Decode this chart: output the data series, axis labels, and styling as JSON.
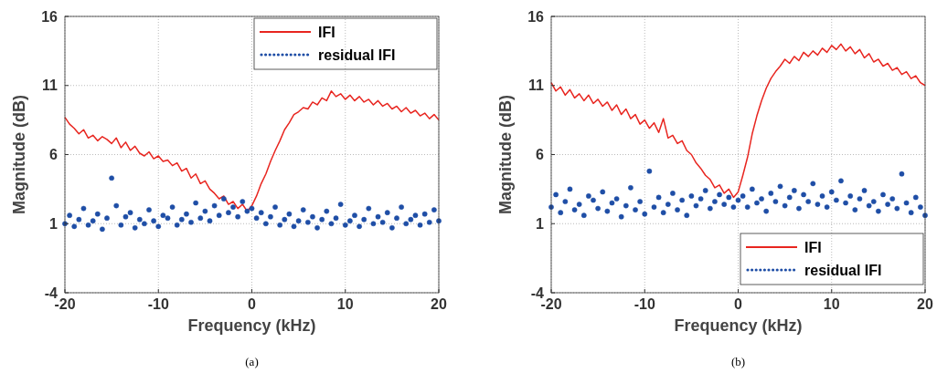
{
  "chart_data": [
    {
      "type": "line",
      "xlabel": "Frequency (kHz)",
      "ylabel": "Magnitude (dB)",
      "xlim": [
        -20,
        20
      ],
      "xticks": [
        -20,
        -10,
        0,
        10,
        20
      ],
      "ylim": [
        -4,
        16
      ],
      "yticks": [
        -4,
        1,
        6,
        11,
        16
      ],
      "grid": true,
      "legend": "top right",
      "annotations": [
        "(a)"
      ],
      "x": [
        -20,
        -19.5,
        -19,
        -18.5,
        -18,
        -17.5,
        -17,
        -16.5,
        -16,
        -15.5,
        -15,
        -14.5,
        -14,
        -13.5,
        -13,
        -12.5,
        -12,
        -11.5,
        -11,
        -10.5,
        -10,
        -9.5,
        -9,
        -8.5,
        -8,
        -7.5,
        -7,
        -6.5,
        -6,
        -5.5,
        -5,
        -4.5,
        -4,
        -3.5,
        -3,
        -2.5,
        -2,
        -1.5,
        -1,
        -0.5,
        0,
        0.5,
        1,
        1.5,
        2,
        2.5,
        3,
        3.5,
        4,
        4.5,
        5,
        5.5,
        6,
        6.5,
        7,
        7.5,
        8,
        8.5,
        9,
        9.5,
        10,
        10.5,
        11,
        11.5,
        12,
        12.5,
        13,
        13.5,
        14,
        14.5,
        15,
        15.5,
        16,
        16.5,
        17,
        17.5,
        18,
        18.5,
        19,
        19.5,
        20
      ],
      "series": [
        {
          "name": "IFI",
          "type": "line",
          "color": "#e8251f",
          "values": [
            8.7,
            8.2,
            7.9,
            7.5,
            7.8,
            7.2,
            7.4,
            7.0,
            7.3,
            7.1,
            6.8,
            7.2,
            6.5,
            6.9,
            6.3,
            6.6,
            6.1,
            5.9,
            6.2,
            5.7,
            5.9,
            5.5,
            5.6,
            5.2,
            5.4,
            4.8,
            5.0,
            4.3,
            4.6,
            3.9,
            4.1,
            3.5,
            3.2,
            2.8,
            3.0,
            2.4,
            2.6,
            2.1,
            2.4,
            1.9,
            2.3,
            3.0,
            3.9,
            4.6,
            5.5,
            6.3,
            7.0,
            7.8,
            8.3,
            8.9,
            9.1,
            9.4,
            9.3,
            9.8,
            9.6,
            10.1,
            9.9,
            10.6,
            10.2,
            10.4,
            10.0,
            10.3,
            9.9,
            10.2,
            9.8,
            10.0,
            9.6,
            9.9,
            9.5,
            9.7,
            9.3,
            9.5,
            9.1,
            9.4,
            9.0,
            9.2,
            8.8,
            9.0,
            8.6,
            8.9,
            8.5
          ]
        },
        {
          "name": "residual IFI",
          "type": "scatter",
          "marker": "circle",
          "color": "#1f4ea6",
          "values": [
            1.0,
            1.6,
            0.8,
            1.3,
            2.1,
            0.9,
            1.2,
            1.7,
            0.6,
            1.4,
            4.3,
            2.3,
            0.9,
            1.5,
            1.8,
            0.7,
            1.3,
            1.0,
            2.0,
            1.2,
            0.8,
            1.6,
            1.4,
            2.2,
            0.9,
            1.3,
            1.7,
            1.1,
            2.5,
            1.4,
            1.9,
            1.2,
            2.3,
            1.6,
            2.8,
            1.8,
            2.2,
            1.5,
            2.6,
            1.9,
            2.1,
            1.4,
            1.8,
            1.0,
            1.5,
            2.2,
            0.9,
            1.3,
            1.7,
            0.8,
            1.2,
            2.0,
            1.1,
            1.5,
            0.7,
            1.3,
            1.9,
            1.0,
            1.4,
            2.4,
            0.9,
            1.2,
            1.6,
            0.8,
            1.3,
            2.1,
            1.0,
            1.5,
            1.1,
            1.8,
            0.7,
            1.4,
            2.2,
            1.0,
            1.3,
            1.6,
            0.9,
            1.7,
            1.1,
            2.0,
            1.2
          ]
        }
      ]
    },
    {
      "type": "line",
      "xlabel": "Frequency (kHz)",
      "ylabel": "Magnitude (dB)",
      "xlim": [
        -20,
        20
      ],
      "xticks": [
        -20,
        -10,
        0,
        10,
        20
      ],
      "ylim": [
        -4,
        16
      ],
      "yticks": [
        -4,
        1,
        6,
        11,
        16
      ],
      "grid": true,
      "legend": "bottom right",
      "annotations": [
        "(b)"
      ],
      "x": [
        -20,
        -19.5,
        -19,
        -18.5,
        -18,
        -17.5,
        -17,
        -16.5,
        -16,
        -15.5,
        -15,
        -14.5,
        -14,
        -13.5,
        -13,
        -12.5,
        -12,
        -11.5,
        -11,
        -10.5,
        -10,
        -9.5,
        -9,
        -8.5,
        -8,
        -7.5,
        -7,
        -6.5,
        -6,
        -5.5,
        -5,
        -4.5,
        -4,
        -3.5,
        -3,
        -2.5,
        -2,
        -1.5,
        -1,
        -0.5,
        0,
        0.5,
        1,
        1.5,
        2,
        2.5,
        3,
        3.5,
        4,
        4.5,
        5,
        5.5,
        6,
        6.5,
        7,
        7.5,
        8,
        8.5,
        9,
        9.5,
        10,
        10.5,
        11,
        11.5,
        12,
        12.5,
        13,
        13.5,
        14,
        14.5,
        15,
        15.5,
        16,
        16.5,
        17,
        17.5,
        18,
        18.5,
        19,
        19.5,
        20
      ],
      "series": [
        {
          "name": "IFI",
          "type": "line",
          "color": "#e8251f",
          "values": [
            11.2,
            10.6,
            10.9,
            10.3,
            10.7,
            10.1,
            10.4,
            9.9,
            10.3,
            9.7,
            10.0,
            9.5,
            9.8,
            9.2,
            9.6,
            8.9,
            9.3,
            8.6,
            8.9,
            8.2,
            8.5,
            7.9,
            8.3,
            7.6,
            8.6,
            7.2,
            7.4,
            6.8,
            7.0,
            6.3,
            6.0,
            5.4,
            5.0,
            4.5,
            4.2,
            3.6,
            3.8,
            3.2,
            3.5,
            2.9,
            3.3,
            4.5,
            5.8,
            7.5,
            8.8,
            9.9,
            10.8,
            11.5,
            12.0,
            12.4,
            12.9,
            12.6,
            13.1,
            12.8,
            13.4,
            13.1,
            13.5,
            13.2,
            13.7,
            13.4,
            13.9,
            13.6,
            14.0,
            13.5,
            13.8,
            13.3,
            13.6,
            13.0,
            13.3,
            12.7,
            12.9,
            12.4,
            12.6,
            12.1,
            12.3,
            11.8,
            12.0,
            11.5,
            11.7,
            11.2,
            11.0
          ]
        },
        {
          "name": "residual IFI",
          "type": "scatter",
          "marker": "circle",
          "color": "#1f4ea6",
          "values": [
            2.2,
            3.1,
            1.8,
            2.6,
            3.5,
            2.0,
            2.4,
            1.6,
            3.0,
            2.7,
            2.1,
            3.3,
            1.9,
            2.5,
            2.8,
            1.5,
            2.3,
            3.6,
            2.0,
            2.6,
            1.7,
            4.8,
            2.2,
            2.9,
            1.8,
            2.4,
            3.2,
            2.0,
            2.7,
            1.6,
            3.0,
            2.3,
            2.8,
            3.4,
            2.1,
            2.6,
            3.1,
            2.4,
            2.9,
            2.2,
            2.7,
            3.0,
            2.2,
            3.5,
            2.5,
            2.8,
            1.9,
            3.2,
            2.6,
            3.7,
            2.3,
            2.9,
            3.4,
            2.1,
            3.1,
            2.6,
            3.9,
            2.4,
            3.0,
            2.2,
            3.3,
            2.7,
            4.1,
            2.5,
            3.0,
            2.0,
            2.8,
            3.4,
            2.3,
            2.6,
            1.9,
            3.1,
            2.4,
            2.8,
            2.1,
            4.6,
            2.5,
            1.8,
            2.9,
            2.2,
            1.6
          ]
        }
      ]
    }
  ]
}
